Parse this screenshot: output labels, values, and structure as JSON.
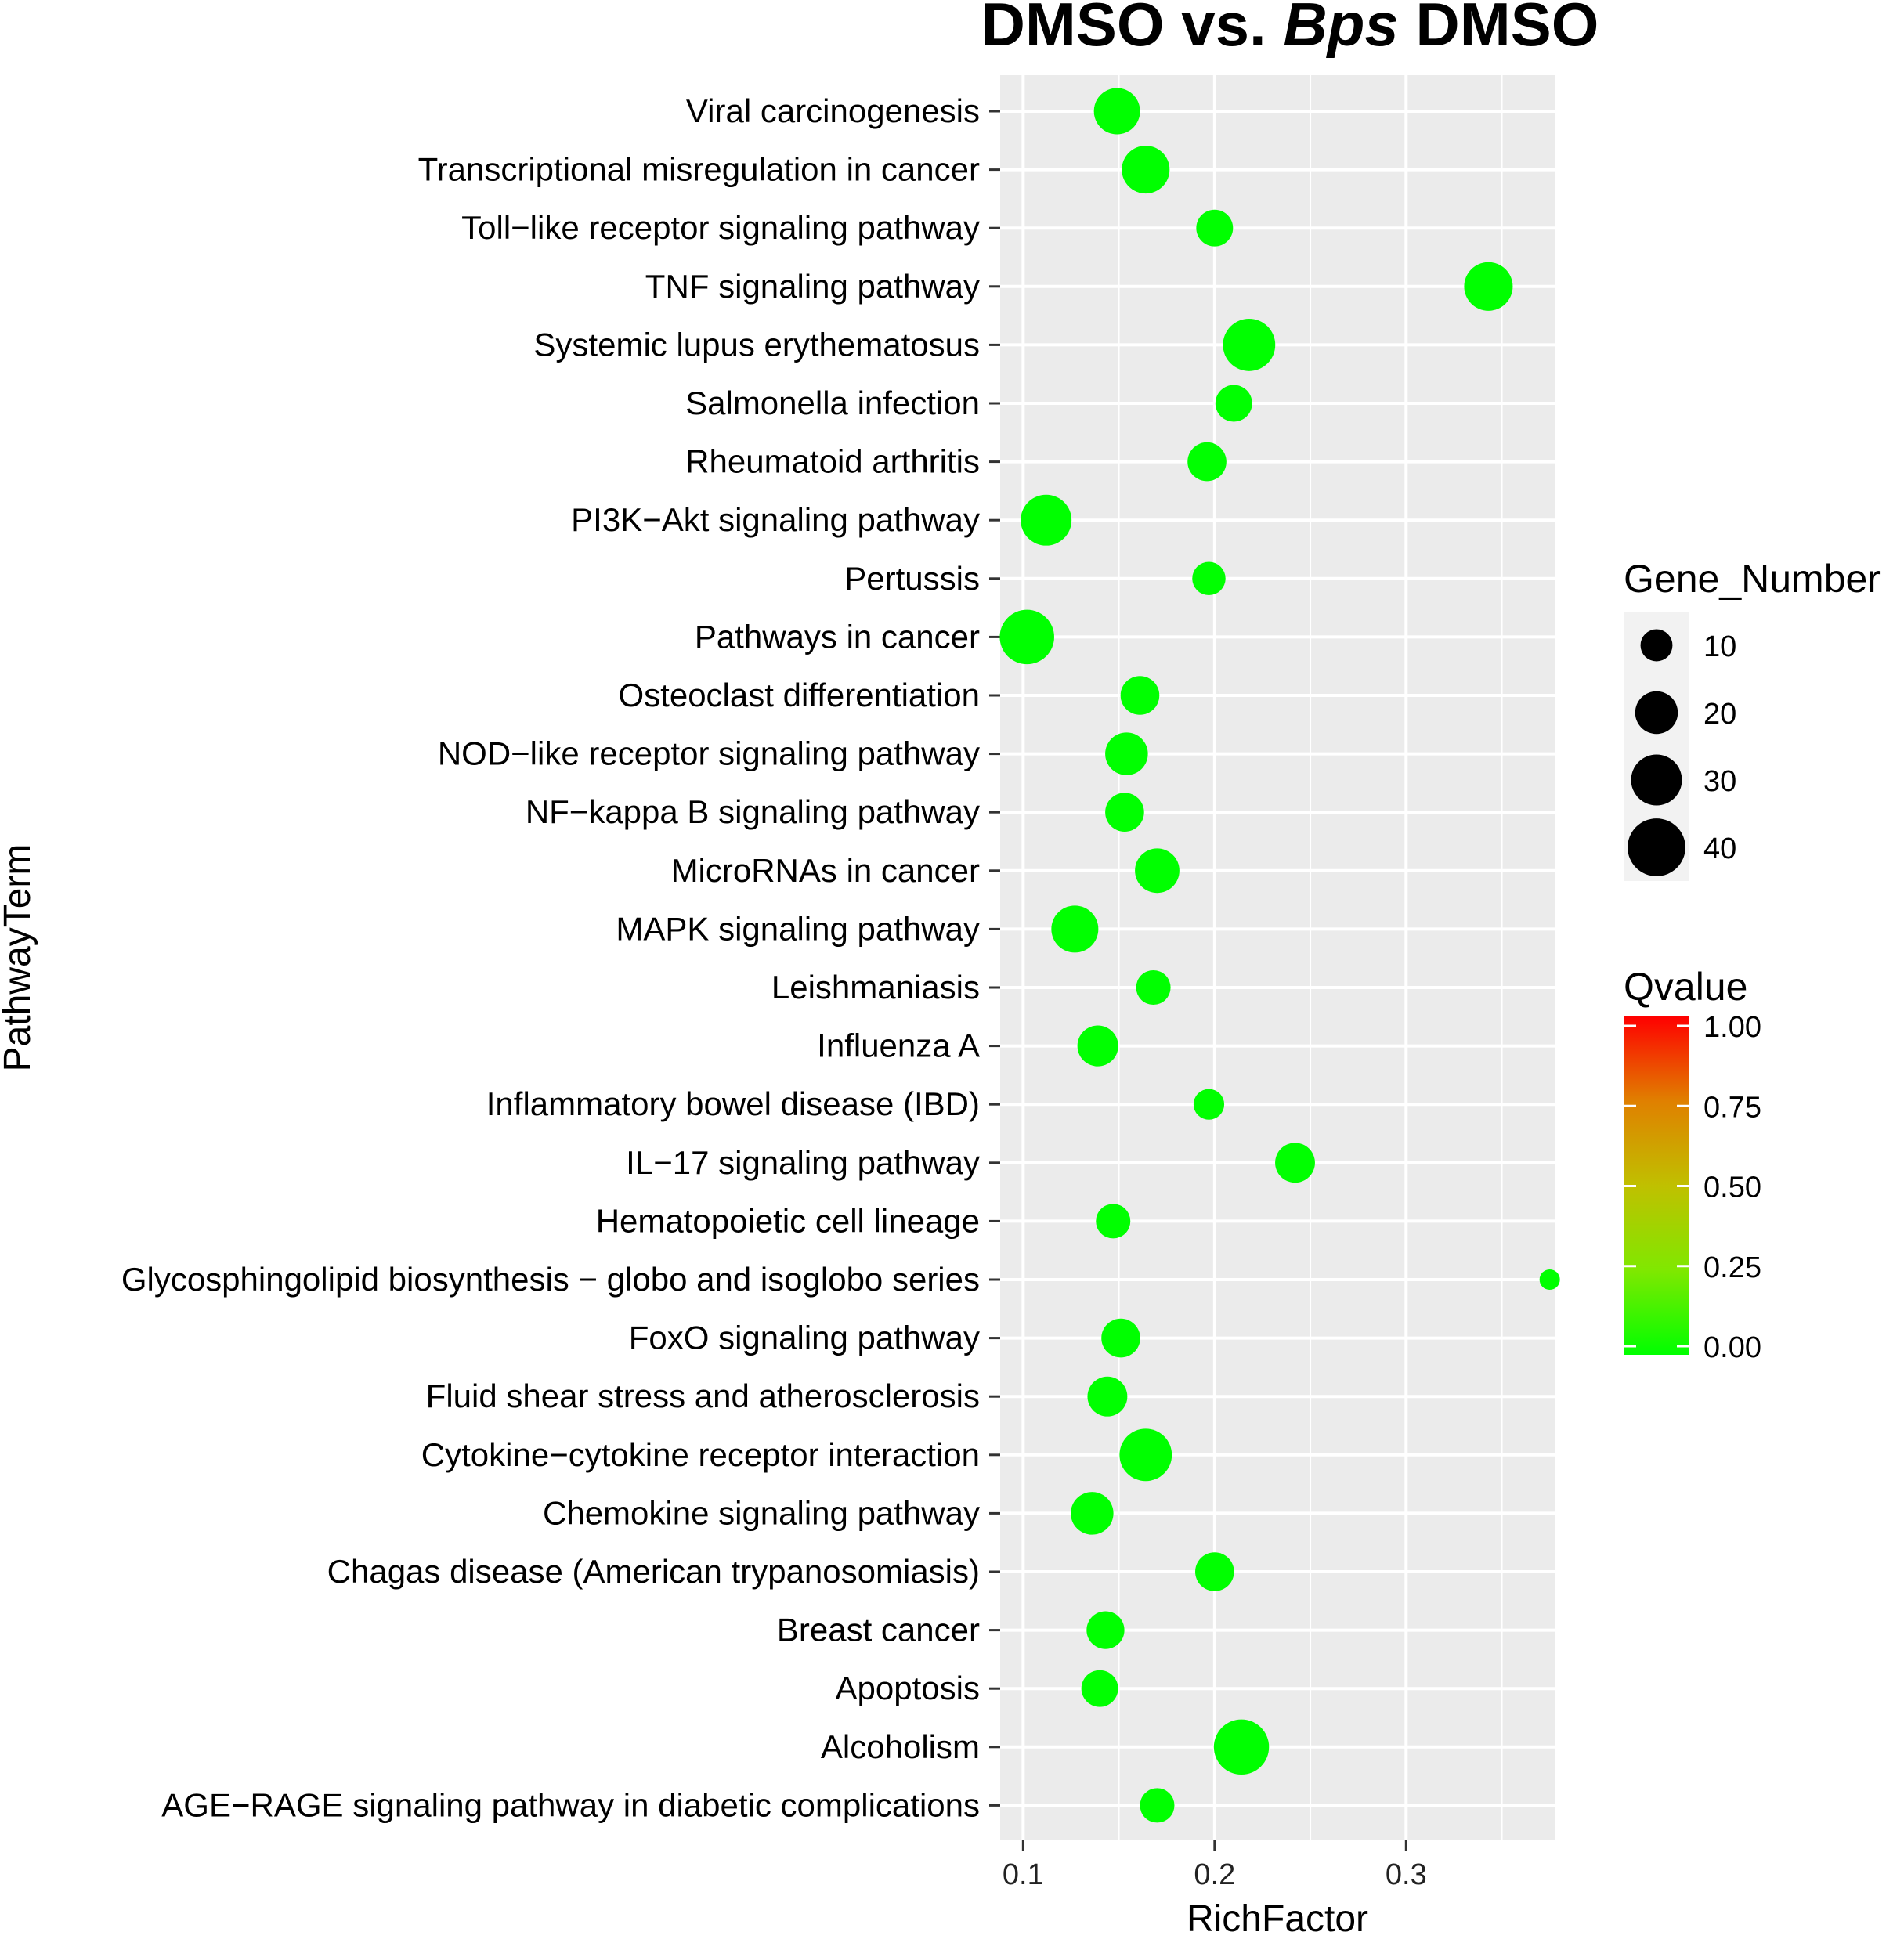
{
  "chart_data": {
    "type": "scatter",
    "title_parts": [
      "DMSO vs. ",
      "Bps",
      " DMSO"
    ],
    "xlabel": "RichFactor",
    "ylabel": "PathwayTerm",
    "xlim": [
      0.088,
      0.378
    ],
    "x_ticks": [
      0.1,
      0.2,
      0.3
    ],
    "x_tick_labels": [
      "0.1",
      "0.2",
      "0.3"
    ],
    "grid": true,
    "point_color": "#00ff00",
    "categories": [
      "Viral carcinogenesis",
      "Transcriptional misregulation in cancer",
      "Toll−like receptor signaling pathway",
      "TNF signaling pathway",
      "Systemic lupus erythematosus",
      "Salmonella infection",
      "Rheumatoid arthritis",
      "PI3K−Akt signaling pathway",
      "Pertussis",
      "Pathways in cancer",
      "Osteoclast differentiation",
      "NOD−like receptor signaling pathway",
      "NF−kappa B signaling pathway",
      "MicroRNAs in cancer",
      "MAPK signaling pathway",
      "Leishmaniasis",
      "Influenza A",
      "Inflammatory bowel disease (IBD)",
      "IL−17 signaling pathway",
      "Hematopoietic cell lineage",
      "Glycosphingolipid biosynthesis − globo and isoglobo series",
      "FoxO signaling pathway",
      "Fluid shear stress and atherosclerosis",
      "Cytokine−cytokine receptor interaction",
      "Chemokine signaling pathway",
      "Chagas disease (American trypanosomiasis)",
      "Breast cancer",
      "Apoptosis",
      "Alcoholism",
      "AGE−RAGE signaling pathway in diabetic complications"
    ],
    "rich_factor": [
      0.149,
      0.164,
      0.2,
      0.343,
      0.218,
      0.21,
      0.196,
      0.112,
      0.197,
      0.102,
      0.161,
      0.154,
      0.153,
      0.17,
      0.127,
      0.168,
      0.139,
      0.197,
      0.242,
      0.147,
      0.375,
      0.151,
      0.144,
      0.164,
      0.136,
      0.2,
      0.143,
      0.14,
      0.214,
      0.17
    ],
    "gene_number": [
      24,
      26,
      14,
      27,
      32,
      14,
      16,
      30,
      11,
      35,
      16,
      20,
      16,
      22,
      25,
      12,
      18,
      9,
      17,
      12,
      3,
      16,
      17,
      32,
      20,
      16,
      15,
      14,
      36,
      12
    ],
    "qvalue": [
      0,
      0,
      0,
      0,
      0,
      0,
      0,
      0,
      0,
      0,
      0,
      0,
      0,
      0,
      0,
      0,
      0,
      0,
      0,
      0,
      0,
      0,
      0,
      0,
      0,
      0,
      0,
      0,
      0,
      0
    ],
    "size_legend": {
      "title": "Gene_Number",
      "values": [
        10,
        20,
        30,
        40
      ],
      "labels": [
        "10",
        "20",
        "30",
        "40"
      ]
    },
    "color_legend": {
      "title": "Qvalue",
      "min": 0,
      "max": 1,
      "ticks": [
        1.0,
        0.75,
        0.5,
        0.25,
        0.0
      ],
      "labels": [
        "1.00",
        "0.75",
        "0.50",
        "0.25",
        "0.00"
      ],
      "low_color": "#00ff00",
      "high_color": "#ff0000"
    },
    "panel_background": "#ebebeb"
  }
}
